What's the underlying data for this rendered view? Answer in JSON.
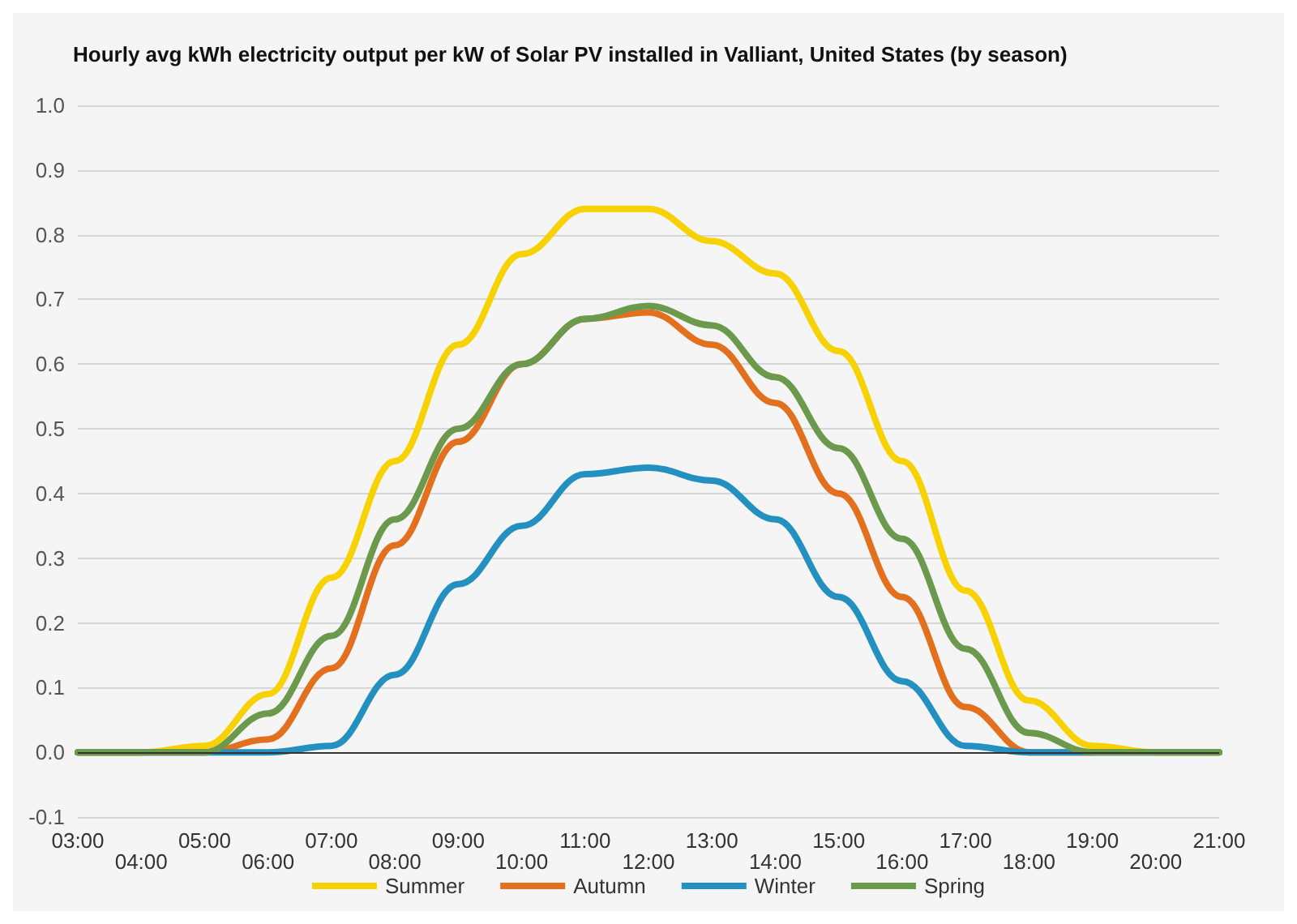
{
  "chart_data": {
    "type": "line",
    "title": "Hourly avg kWh electricity output per kW of Solar PV installed in Valliant, United States (by season)",
    "categories": [
      "03:00",
      "04:00",
      "05:00",
      "06:00",
      "07:00",
      "08:00",
      "09:00",
      "10:00",
      "11:00",
      "12:00",
      "13:00",
      "14:00",
      "15:00",
      "16:00",
      "17:00",
      "18:00",
      "19:00",
      "20:00",
      "21:00"
    ],
    "series": [
      {
        "name": "Summer",
        "color": "#f7d200",
        "values": [
          0,
          0,
          0.01,
          0.09,
          0.27,
          0.45,
          0.63,
          0.77,
          0.84,
          0.84,
          0.79,
          0.74,
          0.62,
          0.45,
          0.25,
          0.08,
          0.01,
          0,
          0
        ]
      },
      {
        "name": "Autumn",
        "color": "#e2701e",
        "values": [
          0,
          0,
          0,
          0.02,
          0.13,
          0.32,
          0.48,
          0.6,
          0.67,
          0.68,
          0.63,
          0.54,
          0.4,
          0.24,
          0.07,
          0,
          0,
          null,
          null
        ]
      },
      {
        "name": "Winter",
        "color": "#2390c0",
        "values": [
          0,
          0,
          0,
          0,
          0.01,
          0.12,
          0.26,
          0.35,
          0.43,
          0.44,
          0.42,
          0.36,
          0.24,
          0.11,
          0.01,
          0,
          0,
          0,
          0
        ]
      },
      {
        "name": "Spring",
        "color": "#6c9a4c",
        "values": [
          0,
          0,
          0,
          0.06,
          0.18,
          0.36,
          0.5,
          0.6,
          0.67,
          0.69,
          0.66,
          0.58,
          0.47,
          0.33,
          0.16,
          0.03,
          0,
          0,
          0
        ]
      }
    ],
    "ylim": [
      -0.1,
      1.0
    ],
    "yticks": [
      -0.1,
      {
        "value": 0,
        "label": "0.0"
      },
      0.1,
      0.2,
      0.3,
      0.4,
      0.5,
      0.6,
      0.7,
      0.8,
      0.9,
      {
        "value": 1,
        "label": "1.0"
      }
    ],
    "grid": "y",
    "legend": "bottom",
    "marker": "none",
    "line_style": "solid",
    "ref_lines": [
      {
        "axis": "y",
        "value": 0,
        "color": "#333333"
      }
    ]
  }
}
